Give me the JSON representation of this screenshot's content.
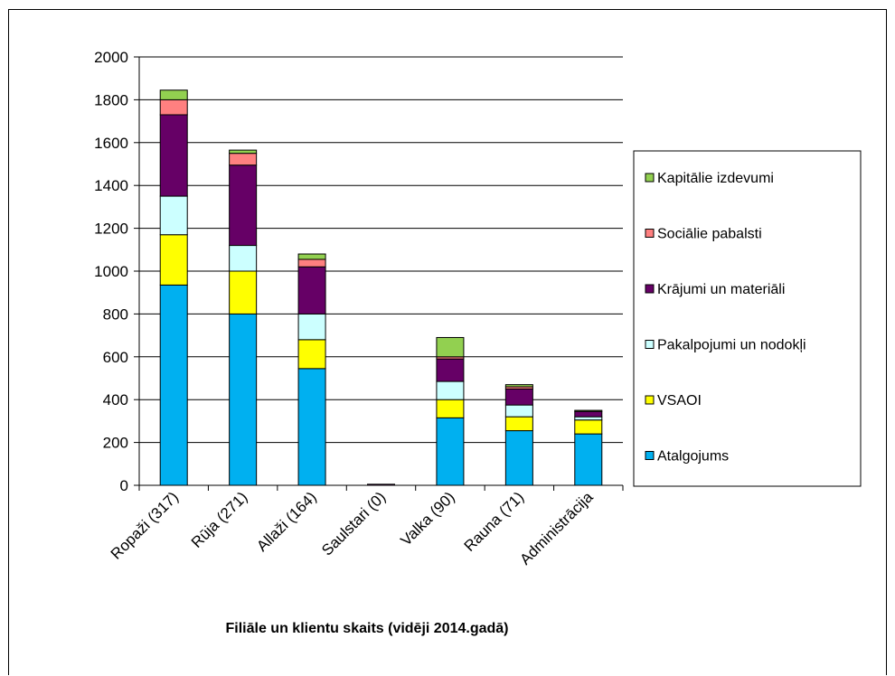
{
  "chart_data": {
    "type": "bar",
    "stacked": true,
    "title": "",
    "xlabel": "Filiāle  un klientu skaits (vidēji 2014.gadā)",
    "ylabel": "",
    "ylim": [
      0,
      2000
    ],
    "yticks": [
      "0",
      "200",
      "400",
      "600",
      "800",
      "1000",
      "1200",
      "1400",
      "1600",
      "1800",
      "2000"
    ],
    "grid": "horizontal",
    "legend_position": "right",
    "categories": [
      "Ropaži (317)",
      "Rūja (271)",
      "Allaži (164)",
      "Saulstari (0)",
      "Valka (90)",
      "Rauna (71)",
      "Administrācija"
    ],
    "series": [
      {
        "name": "Atalgojums",
        "color": "#00b0f0",
        "values": [
          935,
          800,
          545,
          0,
          315,
          255,
          240
        ]
      },
      {
        "name": "VSAOI",
        "color": "#ffff00",
        "values": [
          235,
          200,
          135,
          0,
          85,
          65,
          65
        ]
      },
      {
        "name": "Pakalpojumi un nodokļi",
        "color": "#ccffff",
        "values": [
          180,
          120,
          120,
          0,
          85,
          55,
          15
        ]
      },
      {
        "name": "Krājumi un materiāli",
        "color": "#660066",
        "values": [
          380,
          375,
          220,
          5,
          105,
          75,
          25
        ]
      },
      {
        "name": "Sociālie pabalsti",
        "color": "#ff8080",
        "values": [
          70,
          55,
          35,
          0,
          10,
          10,
          0
        ]
      },
      {
        "name": "Kapitālie izdevumi",
        "color": "#92d050",
        "values": [
          45,
          15,
          25,
          0,
          90,
          10,
          5
        ]
      }
    ]
  }
}
